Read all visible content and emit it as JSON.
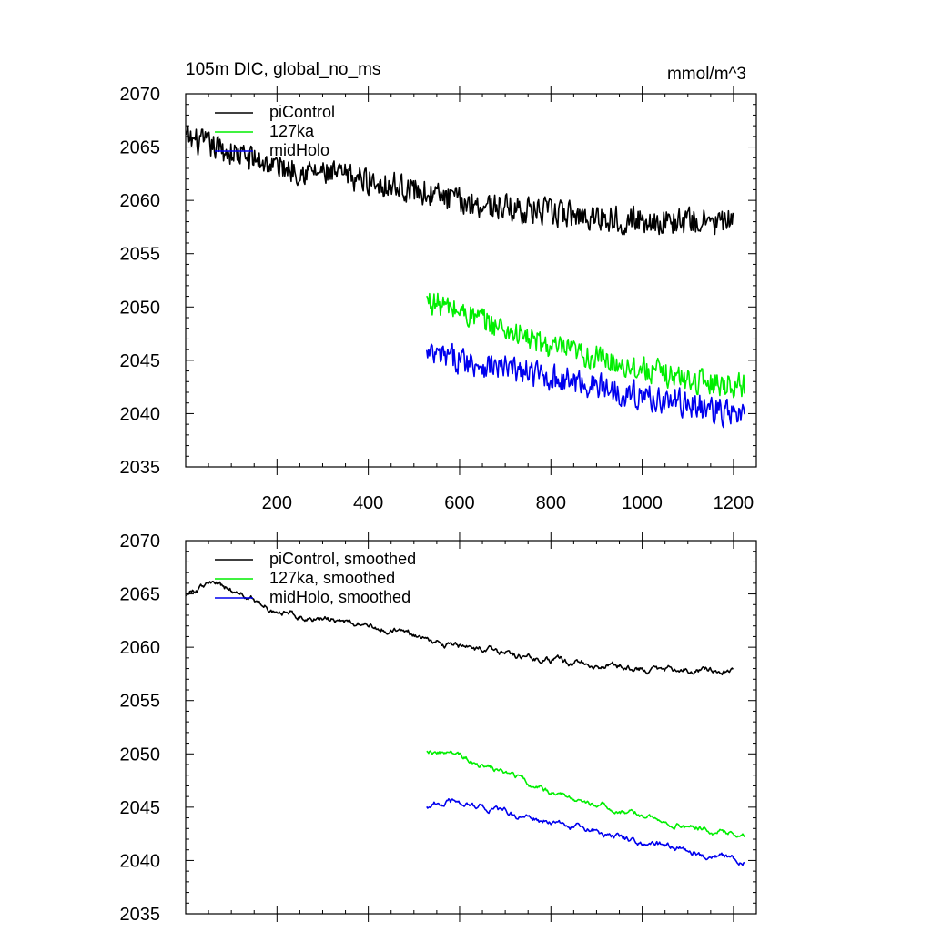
{
  "chart_data": [
    {
      "type": "line",
      "title": "105m DIC, global_no_ms",
      "units": "mmol/m^3",
      "xlim": [
        0,
        1250
      ],
      "ylim": [
        2035,
        2070
      ],
      "xticks": [
        200,
        400,
        600,
        800,
        1000,
        1200
      ],
      "xtick_labels": [
        "200",
        "400",
        "600",
        "800",
        "1000",
        "1200"
      ],
      "yticks": [
        2035,
        2040,
        2045,
        2050,
        2055,
        2060,
        2065,
        2070
      ],
      "ytick_labels": [
        "2035",
        "2040",
        "2045",
        "2050",
        "2055",
        "2060",
        "2065",
        "2070"
      ],
      "legend_position": "top-left",
      "series": [
        {
          "name": "piControl",
          "color": "#000000",
          "x": [
            1,
            1200
          ],
          "trend": [
            [
              0,
              2065.8
            ],
            [
              200,
              2063.2
            ],
            [
              400,
              2061.9
            ],
            [
              500,
              2061.0
            ],
            [
              600,
              2059.9
            ],
            [
              800,
              2058.8
            ],
            [
              1000,
              2058.1
            ],
            [
              1200,
              2057.9
            ]
          ],
          "noise": 1.3
        },
        {
          "name": "127ka",
          "color": "#00ee00",
          "x": [
            528,
            1225
          ],
          "trend": [
            [
              528,
              2050.6
            ],
            [
              600,
              2049.6
            ],
            [
              700,
              2047.9
            ],
            [
              800,
              2046.2
            ],
            [
              900,
              2045.2
            ],
            [
              1000,
              2044.2
            ],
            [
              1100,
              2043.2
            ],
            [
              1225,
              2042.6
            ]
          ],
          "noise": 1.2
        },
        {
          "name": "midHolo",
          "color": "#0000ee",
          "x": [
            528,
            1225
          ],
          "trend": [
            [
              528,
              2045.4
            ],
            [
              600,
              2045.1
            ],
            [
              700,
              2044.2
            ],
            [
              800,
              2043.4
            ],
            [
              900,
              2042.6
            ],
            [
              1000,
              2041.6
            ],
            [
              1100,
              2040.9
            ],
            [
              1225,
              2039.6
            ]
          ],
          "noise": 1.3
        }
      ]
    },
    {
      "type": "line",
      "xlim": [
        0,
        1250
      ],
      "ylim": [
        2035,
        2070
      ],
      "yticks": [
        2035,
        2040,
        2045,
        2050,
        2055,
        2060,
        2065,
        2070
      ],
      "ytick_labels": [
        "2035",
        "2040",
        "2045",
        "2050",
        "2055",
        "2060",
        "2065",
        "2070"
      ],
      "legend_position": "top-left",
      "series": [
        {
          "name": "piControl, smoothed",
          "color": "#000000",
          "x": [
            1,
            1200
          ],
          "trend": [
            [
              0,
              2065.0
            ],
            [
              60,
              2066.0
            ],
            [
              150,
              2064.5
            ],
            [
              200,
              2063.3
            ],
            [
              400,
              2062.0
            ],
            [
              500,
              2061.2
            ],
            [
              600,
              2060.0
            ],
            [
              800,
              2058.8
            ],
            [
              1000,
              2058.0
            ],
            [
              1200,
              2057.8
            ]
          ],
          "noise": 0.45
        },
        {
          "name": "127ka, smoothed",
          "color": "#00ee00",
          "x": [
            528,
            1225
          ],
          "trend": [
            [
              528,
              2050.4
            ],
            [
              600,
              2049.8
            ],
            [
              700,
              2048.2
            ],
            [
              800,
              2046.4
            ],
            [
              900,
              2045.3
            ],
            [
              1000,
              2044.2
            ],
            [
              1100,
              2043.1
            ],
            [
              1225,
              2042.4
            ]
          ],
          "noise": 0.4
        },
        {
          "name": "midHolo, smoothed",
          "color": "#0000ee",
          "x": [
            528,
            1225
          ],
          "trend": [
            [
              528,
              2045.2
            ],
            [
              600,
              2045.5
            ],
            [
              700,
              2044.5
            ],
            [
              800,
              2043.5
            ],
            [
              900,
              2042.7
            ],
            [
              1000,
              2041.8
            ],
            [
              1100,
              2041.0
            ],
            [
              1225,
              2039.8
            ]
          ],
          "noise": 0.45
        }
      ]
    }
  ]
}
